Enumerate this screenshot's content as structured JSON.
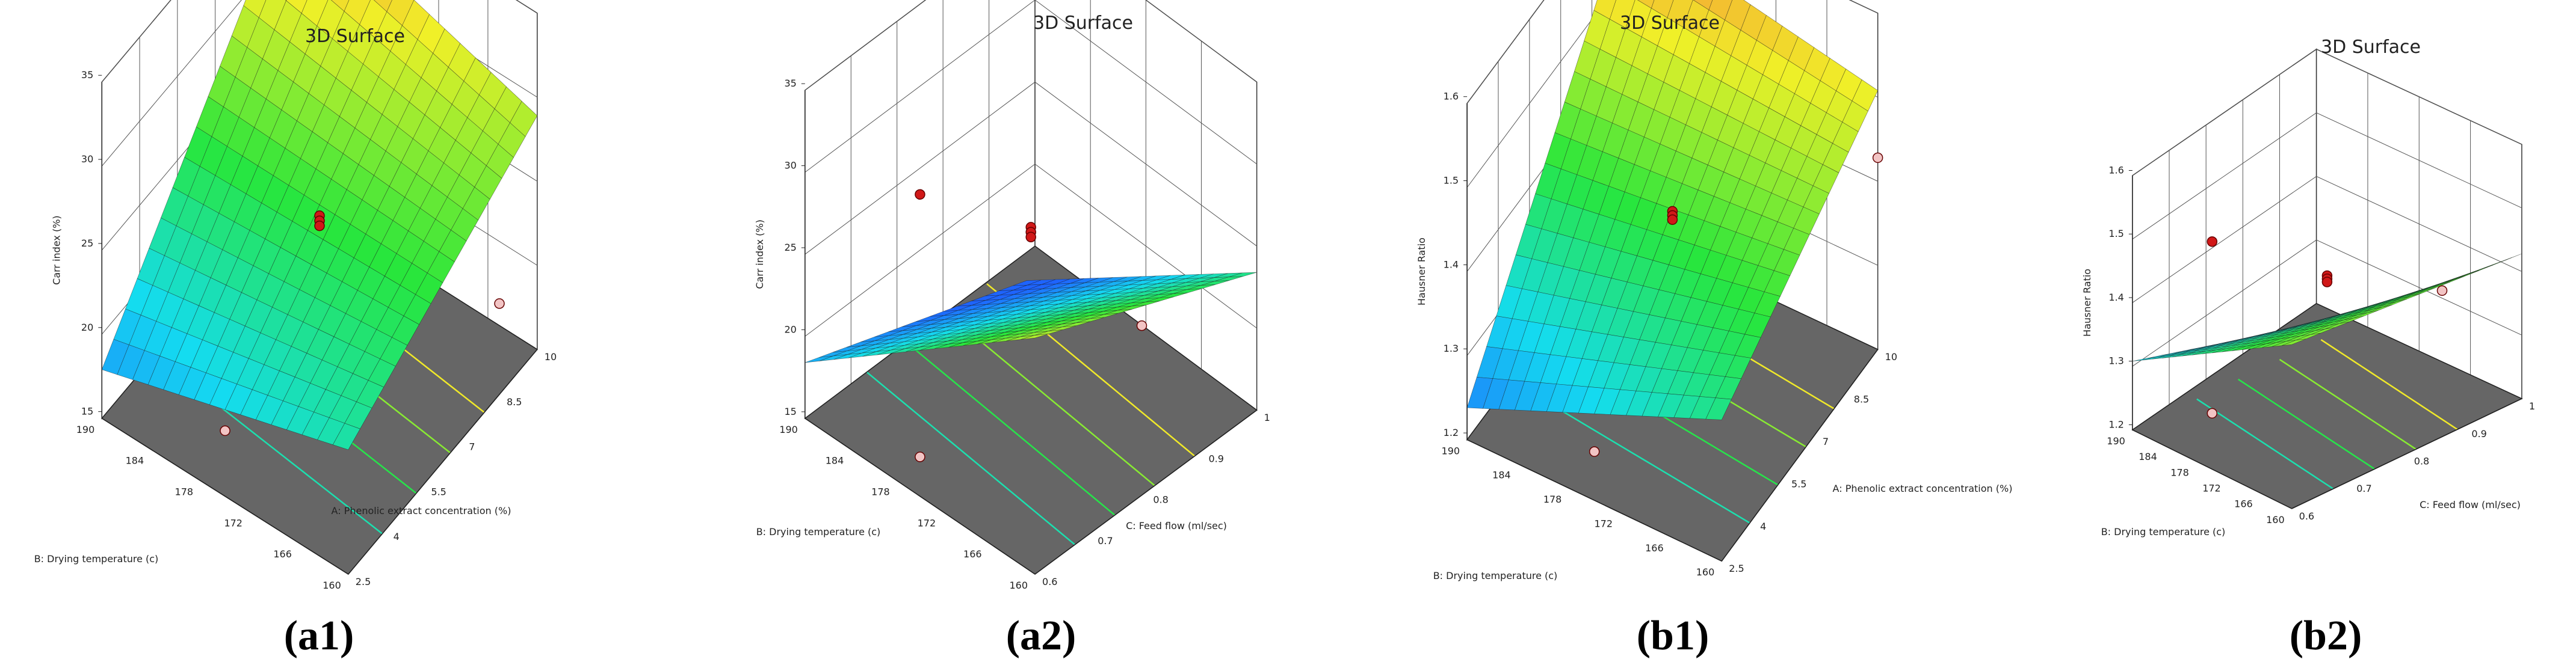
{
  "chart_data": [
    {
      "type": "surface3d",
      "id": "a1",
      "title": "3D Surface",
      "panel_label_prefix": "(",
      "panel_label_letter": "a1",
      "panel_label_suffix": ")",
      "zlabel": "Carr index (%)",
      "xlabel": "A: Phenolic extract concentration (%)",
      "ylabel": "B: Drying temperature (c)",
      "z_ticks": [
        "15",
        "20",
        "25",
        "30",
        "35"
      ],
      "x_ticks": [
        "2.5",
        "4",
        "5.5",
        "7",
        "8.5",
        "10"
      ],
      "y_ticks": [
        "160",
        "166",
        "172",
        "178",
        "184",
        "190"
      ],
      "x_range": [
        2.5,
        10
      ],
      "y_range": [
        160,
        190
      ],
      "z_range": [
        15,
        35
      ],
      "corner_values": {
        "xmin_ymin": 22.0,
        "xmax_ymin": 28.5,
        "xmin_ymax": 17.5,
        "xmax_ymax": 33.0
      },
      "design_points": [
        {
          "x": 6.25,
          "y": 175,
          "z": 24.6,
          "side": "above"
        },
        {
          "x": 6.25,
          "y": 175,
          "z": 24.3,
          "side": "above"
        },
        {
          "x": 6.25,
          "y": 175,
          "z": 24.0,
          "side": "above"
        },
        {
          "x": 10,
          "y": 175,
          "z": 31.5,
          "side": "above"
        },
        {
          "x": 8.5,
          "y": 160,
          "z": 20.0,
          "side": "below"
        },
        {
          "x": 2.5,
          "y": 175,
          "z": 18.5,
          "side": "below"
        }
      ]
    },
    {
      "type": "surface3d",
      "id": "a2",
      "title": "3D Surface",
      "panel_label_prefix": "(",
      "panel_label_letter": "a2",
      "panel_label_suffix": ")",
      "zlabel": "Carr index (%)",
      "xlabel": "C: Feed flow (ml/sec)",
      "ylabel": "B: Drying temperature (c)",
      "z_ticks": [
        "15",
        "20",
        "25",
        "30",
        "35"
      ],
      "x_ticks": [
        "0.6",
        "0.7",
        "0.8",
        "0.9",
        "1"
      ],
      "y_ticks": [
        "160",
        "166",
        "172",
        "178",
        "184",
        "190"
      ],
      "x_range": [
        0.6,
        1
      ],
      "y_range": [
        160,
        190
      ],
      "z_range": [
        15,
        35
      ],
      "corner_values": {
        "xmin_ymin": 29.0,
        "xmax_ymin": 23.0,
        "xmin_ymax": 18.0,
        "xmax_ymax": 13.0
      },
      "design_points": [
        {
          "x": 0.8,
          "y": 175,
          "z": 26.0,
          "side": "above"
        },
        {
          "x": 0.8,
          "y": 175,
          "z": 25.7,
          "side": "above"
        },
        {
          "x": 0.8,
          "y": 175,
          "z": 25.4,
          "side": "above"
        },
        {
          "x": 0.6,
          "y": 175,
          "z": 33.0,
          "side": "above"
        },
        {
          "x": 0.6,
          "y": 175,
          "z": 17.0,
          "side": "below"
        },
        {
          "x": 1,
          "y": 175,
          "z": 15.0,
          "side": "below"
        }
      ]
    },
    {
      "type": "surface3d",
      "id": "b1",
      "title": "3D Surface",
      "panel_label_prefix": "(",
      "panel_label_letter": "b1",
      "panel_label_suffix": ")",
      "zlabel": "Hausner Ratio",
      "xlabel": "A: Phenolic extract concentration (%)",
      "ylabel": "B: Drying temperature (c)",
      "z_ticks": [
        "1.2",
        "1.3",
        "1.4",
        "1.5",
        "1.6"
      ],
      "x_ticks": [
        "2.5",
        "4",
        "5.5",
        "7",
        "8.5",
        "10"
      ],
      "y_ticks": [
        "160",
        "166",
        "172",
        "178",
        "184",
        "190"
      ],
      "x_range": [
        2.5,
        10
      ],
      "y_range": [
        160,
        190
      ],
      "z_range": [
        1.2,
        1.6
      ],
      "corner_values": {
        "xmin_ymin": 1.36,
        "xmax_ymin": 1.5,
        "xmin_ymax": 1.23,
        "xmax_ymax": 1.56
      },
      "design_points": [
        {
          "x": 6.25,
          "y": 175,
          "z": 1.41,
          "side": "above"
        },
        {
          "x": 6.25,
          "y": 175,
          "z": 1.405,
          "side": "above"
        },
        {
          "x": 6.25,
          "y": 175,
          "z": 1.4,
          "side": "above"
        },
        {
          "x": 10,
          "y": 175,
          "z": 1.55,
          "side": "above"
        },
        {
          "x": 10,
          "y": 160,
          "z": 1.42,
          "side": "below"
        },
        {
          "x": 2.5,
          "y": 175,
          "z": 1.25,
          "side": "below"
        }
      ]
    },
    {
      "type": "surface3d",
      "id": "b2",
      "title": "3D Surface",
      "panel_label_prefix": "(",
      "panel_label_letter": "b2",
      "panel_label_suffix": ")",
      "zlabel": "Hausner Ratio",
      "xlabel": "C: Feed flow (ml/sec)",
      "ylabel": "B: Drying temperature (c)",
      "z_ticks": [
        "1.2",
        "1.3",
        "1.4",
        "1.5",
        "1.6"
      ],
      "x_ticks": [
        "0.6",
        "0.7",
        "0.8",
        "0.9",
        "1"
      ],
      "y_ticks": [
        "160",
        "166",
        "172",
        "178",
        "184",
        "190"
      ],
      "x_range": [
        0.6,
        1
      ],
      "y_range": [
        160,
        190
      ],
      "z_range": [
        1.2,
        1.6
      ],
      "corner_values": {
        "xmin_ymin": 1.45,
        "xmax_ymin": 1.42,
        "xmin_ymax": 1.3,
        "xmax_ymax": 1.2
      },
      "design_points": [
        {
          "x": 0.8,
          "y": 175,
          "z": 1.41,
          "side": "above"
        },
        {
          "x": 0.8,
          "y": 175,
          "z": 1.405,
          "side": "above"
        },
        {
          "x": 0.8,
          "y": 175,
          "z": 1.4,
          "side": "above"
        },
        {
          "x": 0.6,
          "y": 175,
          "z": 1.55,
          "side": "above"
        },
        {
          "x": 0.6,
          "y": 175,
          "z": 1.28,
          "side": "below"
        },
        {
          "x": 1,
          "y": 175,
          "z": 1.3,
          "side": "below"
        }
      ]
    }
  ]
}
